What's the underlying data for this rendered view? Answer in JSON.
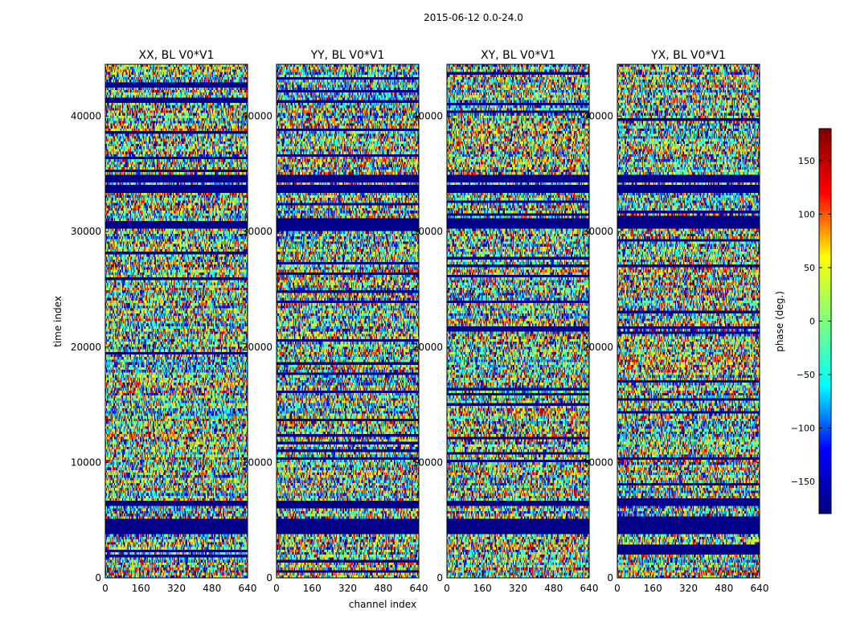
{
  "figure": {
    "suptitle": "2015-06-12 0.0-24.0"
  },
  "chart_data": {
    "type": "heatmap",
    "xlabel": "channel index",
    "ylabel": "time index",
    "xlim": [
      0,
      640
    ],
    "ylim": [
      0,
      44500
    ],
    "x_ticks": [
      0,
      160,
      320,
      480,
      640
    ],
    "y_ticks": [
      0,
      10000,
      20000,
      30000,
      40000
    ],
    "y_tick_labels": [
      "0",
      "10000",
      "20000",
      "30000",
      "40000"
    ],
    "panels": [
      {
        "title": "XX, BL V0*V1"
      },
      {
        "title": "YY, BL V0*V1"
      },
      {
        "title": "XY, BL V0*V1"
      },
      {
        "title": "YX, BL V0*V1"
      }
    ],
    "colorbar": {
      "label": "phase (deg.)",
      "range": [
        -180,
        180
      ],
      "ticks": [
        -150,
        -100,
        -50,
        0,
        50,
        100,
        150
      ],
      "tick_labels": [
        "−150",
        "−100",
        "−50",
        "0",
        "50",
        "100",
        "150"
      ],
      "colormap": "jet"
    },
    "colormap_stops": [
      "#00007f",
      "#0000ff",
      "#00ffff",
      "#7fff7f",
      "#ffff00",
      "#ff0000",
      "#7f0000"
    ],
    "background_color": "#00008a",
    "flagged_time_bands": [
      [
        3800,
        5100
      ],
      [
        6300,
        6600
      ],
      [
        30300,
        31000
      ],
      [
        33300,
        34000
      ],
      [
        34300,
        35000
      ]
    ],
    "grid": false
  }
}
